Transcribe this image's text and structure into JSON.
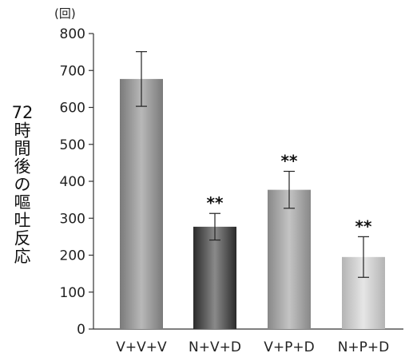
{
  "chart_data": {
    "type": "bar",
    "categories": [
      "V+V+V",
      "N+V+D",
      "V+P+D",
      "N+P+D"
    ],
    "values": [
      677,
      277,
      377,
      195
    ],
    "errors": [
      74,
      36,
      50,
      55
    ],
    "significance": [
      "",
      "**",
      "**",
      "**"
    ],
    "ylabel_chars": [
      "72",
      "時",
      "間",
      "後",
      "の",
      "嘔",
      "吐",
      "反",
      "応"
    ],
    "yunit": "(回)",
    "ylim": [
      0,
      800
    ],
    "yticks": [
      0,
      100,
      200,
      300,
      400,
      500,
      600,
      700,
      800
    ],
    "bar_gradients": [
      [
        "#7a7a7a",
        "#b8b8b8",
        "#7a7a7a"
      ],
      [
        "#2a2a2a",
        "#8a8a8a",
        "#2a2a2a"
      ],
      [
        "#888888",
        "#c4c4c4",
        "#888888"
      ],
      [
        "#b4b4b4",
        "#e6e6e6",
        "#b4b4b4"
      ]
    ],
    "grid": false,
    "legend": "none"
  }
}
